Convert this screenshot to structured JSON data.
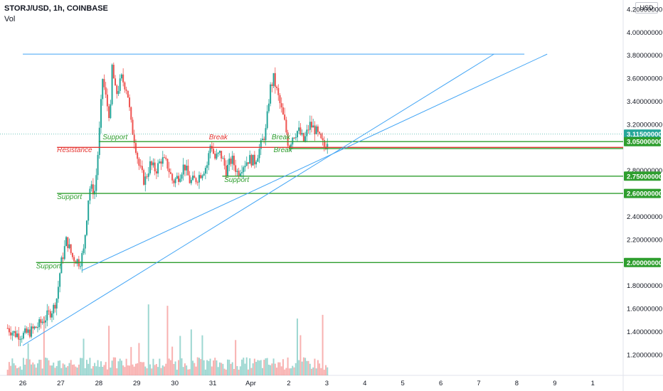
{
  "header": {
    "symbol_line": "STORJ/USD, 1h, COINBASE",
    "volume_label": "Vol",
    "currency": "USD"
  },
  "colors": {
    "up": "#26a69a",
    "down": "#ef5350",
    "support": "#2e9e2e",
    "resistance": "#e53935",
    "trend": "#42a5f5",
    "text": "#131722",
    "price_tag": "#26a69a"
  },
  "chart_data": {
    "type": "candlestick",
    "y_axis_ticks": [
      "4.20000000",
      "4.00000000",
      "3.80000000",
      "3.60000000",
      "3.40000000",
      "3.20000000",
      "2.80000000",
      "2.40000000",
      "2.20000000",
      "1.80000000",
      "1.60000000",
      "1.40000000",
      "1.20000000"
    ],
    "y_axis_tick_values": [
      4.2,
      4.0,
      3.8,
      3.6,
      3.4,
      3.2,
      2.8,
      2.4,
      2.2,
      1.8,
      1.6,
      1.4,
      1.2
    ],
    "x_axis_ticks": [
      "26",
      "27",
      "28",
      "29",
      "30",
      "31",
      "Apr",
      "2",
      "3",
      "4",
      "5",
      "6",
      "7",
      "8",
      "9",
      "1"
    ],
    "x_axis_tick_days": [
      0,
      1,
      2,
      3,
      4,
      5,
      6,
      7,
      8,
      9,
      10,
      11,
      12,
      13,
      14,
      15
    ],
    "ylim": [
      1.02,
      4.28
    ],
    "xlim": [
      -0.6,
      15.8
    ],
    "price_tags": [
      {
        "label": "3.11500000",
        "value": 3.115,
        "color": "#26a69a"
      },
      {
        "label": "3.05000000",
        "value": 3.05,
        "color": "#2e9e2e"
      },
      {
        "label": "2.75000000",
        "value": 2.75,
        "color": "#2e9e2e"
      },
      {
        "label": "2.60000000",
        "value": 2.6,
        "color": "#2e9e2e"
      },
      {
        "label": "2.00000000",
        "value": 2.0,
        "color": "#2e9e2e"
      }
    ],
    "horizontal_levels": [
      {
        "value": 3.05,
        "x_start": 2.0,
        "kind": "support"
      },
      {
        "value": 3.0,
        "x_start": 0.9,
        "kind": "resistance"
      },
      {
        "value": 2.99,
        "x_start": 7.0,
        "kind": "support"
      },
      {
        "value": 2.75,
        "x_start": 5.25,
        "kind": "support"
      },
      {
        "value": 2.6,
        "x_start": 0.9,
        "kind": "support"
      },
      {
        "value": 2.0,
        "x_start": 0.35,
        "kind": "support"
      },
      {
        "value": 3.81,
        "x_start": 0.0,
        "x_end": 13.2,
        "kind": "trend"
      }
    ],
    "trend_lines": [
      {
        "x1": 0.0,
        "y1": 1.28,
        "x2": 12.4,
        "y2": 3.81
      },
      {
        "x1": 1.55,
        "y1": 1.93,
        "x2": 13.8,
        "y2": 3.81
      }
    ],
    "annotations": [
      {
        "text": "Support",
        "day": 2.1,
        "value": 3.07,
        "kind": "support"
      },
      {
        "text": "Break",
        "day": 4.9,
        "value": 3.07,
        "kind": "resistance"
      },
      {
        "text": "Break",
        "day": 6.55,
        "value": 3.07,
        "kind": "support"
      },
      {
        "text": "Resistance",
        "day": 0.9,
        "value": 2.96,
        "kind": "resistance"
      },
      {
        "text": "Break",
        "day": 6.6,
        "value": 2.96,
        "kind": "support"
      },
      {
        "text": "Support",
        "day": 5.3,
        "value": 2.7,
        "kind": "support"
      },
      {
        "text": "Support",
        "day": 0.9,
        "value": 2.55,
        "kind": "support"
      },
      {
        "text": "Support",
        "day": 0.35,
        "value": 1.95,
        "kind": "support"
      }
    ],
    "price_path": [
      [
        -0.4,
        1.43
      ],
      [
        -0.2,
        1.38
      ],
      [
        0.0,
        1.37
      ],
      [
        0.2,
        1.4
      ],
      [
        0.4,
        1.45
      ],
      [
        0.6,
        1.52
      ],
      [
        0.8,
        1.6
      ],
      [
        0.9,
        1.7
      ],
      [
        1.0,
        1.98
      ],
      [
        1.15,
        2.2
      ],
      [
        1.3,
        2.05
      ],
      [
        1.5,
        2.0
      ],
      [
        1.6,
        2.1
      ],
      [
        1.75,
        2.65
      ],
      [
        1.9,
        2.62
      ],
      [
        2.0,
        3.05
      ],
      [
        2.1,
        3.6
      ],
      [
        2.2,
        3.4
      ],
      [
        2.3,
        3.25
      ],
      [
        2.35,
        3.7
      ],
      [
        2.45,
        3.45
      ],
      [
        2.6,
        3.6
      ],
      [
        2.75,
        3.5
      ],
      [
        2.85,
        3.2
      ],
      [
        2.95,
        3.05
      ],
      [
        3.05,
        2.85
      ],
      [
        3.2,
        2.7
      ],
      [
        3.35,
        2.85
      ],
      [
        3.5,
        2.8
      ],
      [
        3.65,
        2.9
      ],
      [
        3.8,
        2.85
      ],
      [
        3.95,
        2.7
      ],
      [
        4.1,
        2.75
      ],
      [
        4.25,
        2.85
      ],
      [
        4.4,
        2.7
      ],
      [
        4.55,
        2.72
      ],
      [
        4.7,
        2.78
      ],
      [
        4.85,
        2.85
      ],
      [
        4.95,
        3.05
      ],
      [
        5.05,
        2.9
      ],
      [
        5.2,
        2.95
      ],
      [
        5.35,
        2.8
      ],
      [
        5.5,
        2.9
      ],
      [
        5.65,
        2.78
      ],
      [
        5.8,
        2.85
      ],
      [
        5.95,
        2.9
      ],
      [
        6.1,
        2.88
      ],
      [
        6.25,
        3.0
      ],
      [
        6.4,
        3.15
      ],
      [
        6.5,
        3.5
      ],
      [
        6.6,
        3.6
      ],
      [
        6.75,
        3.4
      ],
      [
        6.9,
        3.2
      ],
      [
        7.0,
        3.0
      ],
      [
        7.1,
        3.1
      ],
      [
        7.25,
        3.15
      ],
      [
        7.4,
        3.05
      ],
      [
        7.55,
        3.2
      ],
      [
        7.7,
        3.15
      ],
      [
        7.85,
        3.05
      ],
      [
        7.95,
        3.0
      ],
      [
        8.05,
        3.1
      ]
    ],
    "volume_axis_max": 120
  }
}
